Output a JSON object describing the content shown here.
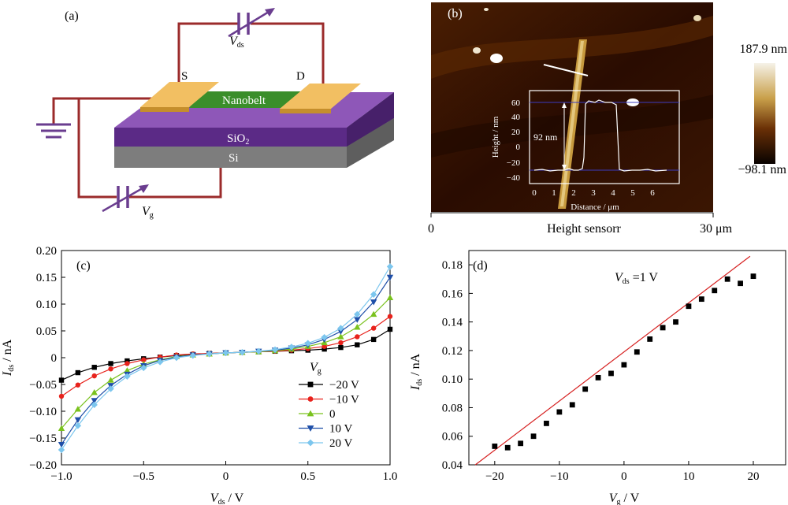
{
  "panel_a": {
    "label": "(a)",
    "source": "S",
    "drain": "D",
    "channel": "Nanobelt",
    "oxide": "SiO",
    "oxide_sub": "2",
    "substrate": "Si",
    "vds": "V",
    "vds_sub": "ds",
    "vg": "V",
    "vg_sub": "g"
  },
  "panel_b": {
    "label": "(b)",
    "scale_max": "187.9 nm",
    "scale_min": "−98.1 nm",
    "axis_start": "0",
    "axis_end": "30 μm",
    "axis_title": "Height sensorr",
    "inset_step": "92 nm",
    "colors": {
      "dark": "#120500",
      "mid": "#8a4a08",
      "light": "#f6f2e8"
    }
  },
  "chart_data": [
    {
      "panel": "(c)",
      "type": "line",
      "xlabel": "V",
      "xlabel_sub": "ds",
      "xlabel_unit": " / V",
      "ylabel": "I",
      "ylabel_sub": "ds",
      "ylabel_unit": " / nA",
      "xlim": [
        -1.0,
        1.0
      ],
      "ylim": [
        -0.2,
        0.2
      ],
      "x_ticks": [
        "−1.0",
        "−0.5",
        "0",
        "0.5",
        "1.0"
      ],
      "y_ticks": [
        "−0.20",
        "−0.15",
        "−0.10",
        "−0.05",
        "0",
        "0.05",
        "0.10",
        "0.15",
        "0.20"
      ],
      "legend_title": "V",
      "legend_title_sub": "g",
      "legend_position": "lower-right",
      "x": [
        -1.0,
        -0.9,
        -0.8,
        -0.7,
        -0.6,
        -0.5,
        -0.4,
        -0.3,
        -0.2,
        -0.1,
        0.0,
        0.1,
        0.2,
        0.3,
        0.4,
        0.5,
        0.6,
        0.7,
        0.8,
        0.9,
        1.0
      ],
      "series": [
        {
          "name": "−20 V",
          "color": "#000000",
          "marker": "square",
          "values": [
            -0.042,
            -0.028,
            -0.018,
            -0.011,
            -0.006,
            -0.002,
            0.001,
            0.004,
            0.006,
            0.008,
            0.009,
            0.01,
            0.011,
            0.012,
            0.013,
            0.014,
            0.016,
            0.019,
            0.024,
            0.034,
            0.053
          ]
        },
        {
          "name": "−10 V",
          "color": "#e8221c",
          "marker": "circle",
          "values": [
            -0.072,
            -0.051,
            -0.034,
            -0.021,
            -0.011,
            -0.004,
            0.001,
            0.005,
            0.007,
            0.008,
            0.009,
            0.01,
            0.011,
            0.012,
            0.014,
            0.017,
            0.021,
            0.028,
            0.039,
            0.055,
            0.077
          ]
        },
        {
          "name": "0",
          "color": "#7ac21e",
          "marker": "triangle-up",
          "values": [
            -0.132,
            -0.096,
            -0.065,
            -0.042,
            -0.024,
            -0.012,
            -0.004,
            0.002,
            0.005,
            0.007,
            0.009,
            0.01,
            0.011,
            0.013,
            0.016,
            0.021,
            0.028,
            0.039,
            0.057,
            0.081,
            0.112
          ]
        },
        {
          "name": "10 V",
          "color": "#1f4fa8",
          "marker": "triangle-down",
          "values": [
            -0.162,
            -0.116,
            -0.08,
            -0.052,
            -0.031,
            -0.015,
            -0.005,
            0.001,
            0.005,
            0.007,
            0.009,
            0.01,
            0.012,
            0.014,
            0.018,
            0.024,
            0.034,
            0.049,
            0.071,
            0.104,
            0.15
          ]
        },
        {
          "name": "20 V",
          "color": "#7cc6ee",
          "marker": "diamond",
          "values": [
            -0.172,
            -0.127,
            -0.088,
            -0.058,
            -0.035,
            -0.019,
            -0.008,
            0.0,
            0.004,
            0.007,
            0.009,
            0.01,
            0.012,
            0.015,
            0.02,
            0.027,
            0.038,
            0.055,
            0.081,
            0.118,
            0.17
          ]
        }
      ]
    },
    {
      "panel": "(d)",
      "type": "scatter",
      "xlabel": "V",
      "xlabel_sub": "g",
      "xlabel_unit": " / V",
      "ylabel": "I",
      "ylabel_sub": "ds",
      "ylabel_unit": " / nA",
      "xlim": [
        -24,
        25
      ],
      "ylim": [
        0.04,
        0.19
      ],
      "x_ticks": [
        "−20",
        "−10",
        "0",
        "10",
        "20"
      ],
      "y_ticks": [
        "0.04",
        "0.06",
        "0.08",
        "0.10",
        "0.12",
        "0.14",
        "0.16",
        "0.18"
      ],
      "annotation": "V",
      "annotation_sub": "ds",
      "annotation_rest": " =1 V",
      "marker_color": "#000000",
      "fit_color": "#d62020",
      "x": [
        -20,
        -18,
        -16,
        -14,
        -12,
        -10,
        -8,
        -6,
        -4,
        -2,
        0,
        2,
        4,
        6,
        8,
        10,
        12,
        14,
        16,
        18,
        20
      ],
      "values": [
        0.053,
        0.052,
        0.055,
        0.06,
        0.069,
        0.077,
        0.082,
        0.093,
        0.101,
        0.104,
        0.11,
        0.119,
        0.128,
        0.136,
        0.14,
        0.151,
        0.156,
        0.162,
        0.17,
        0.167,
        0.172
      ],
      "fit": {
        "x": [
          -23,
          19.5
        ],
        "y": [
          0.04,
          0.186
        ]
      }
    }
  ]
}
